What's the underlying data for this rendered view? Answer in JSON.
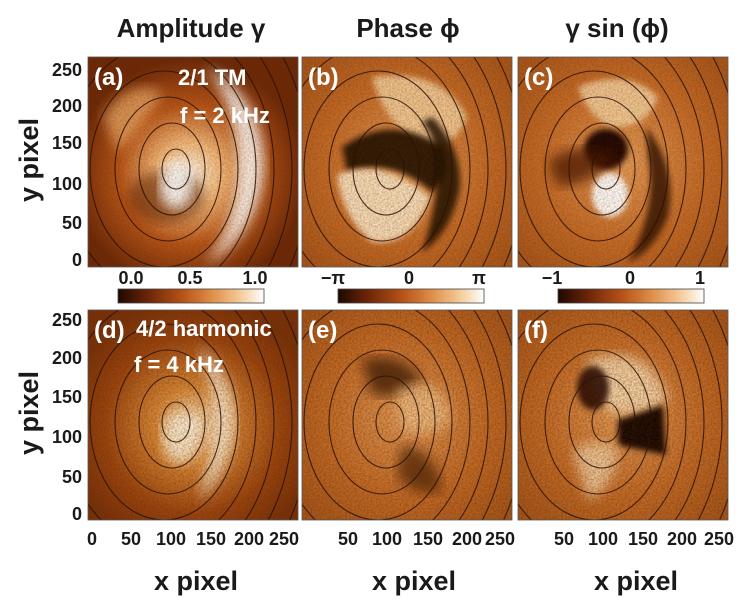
{
  "figure": {
    "column_titles": [
      "Amplitude γ",
      "Phase ϕ",
      "γ sin (ϕ)"
    ],
    "ylabel": "y pixel",
    "xlabel": "x pixel",
    "y_ticks": [
      "250",
      "200",
      "150",
      "100",
      "50",
      "0"
    ],
    "x_ticks_first": [
      "0",
      "50",
      "100",
      "150",
      "200",
      "250"
    ],
    "x_ticks_other": [
      "50",
      "100",
      "150",
      "200",
      "250"
    ],
    "panels": [
      {
        "id": "a",
        "label": "(a)",
        "annotation": [
          "2/1 TM",
          "f = 2 kHz"
        ]
      },
      {
        "id": "b",
        "label": "(b)",
        "annotation": []
      },
      {
        "id": "c",
        "label": "(c)",
        "annotation": []
      },
      {
        "id": "d",
        "label": "(d)",
        "annotation": [
          "4/2 harmonic",
          "f = 4 kHz"
        ]
      },
      {
        "id": "e",
        "label": "(e)",
        "annotation": []
      },
      {
        "id": "f",
        "label": "(f)",
        "annotation": []
      }
    ],
    "colorbars": [
      {
        "ticks": [
          "0.0",
          "0.5",
          "1.0"
        ]
      },
      {
        "ticks": [
          "−π",
          "0",
          "π"
        ]
      },
      {
        "ticks": [
          "−1",
          "0",
          "1"
        ]
      }
    ],
    "colormap": [
      "#1e0800",
      "#6b2408",
      "#b85418",
      "#e0904a",
      "#f5cfa0",
      "#ffffff"
    ]
  }
}
